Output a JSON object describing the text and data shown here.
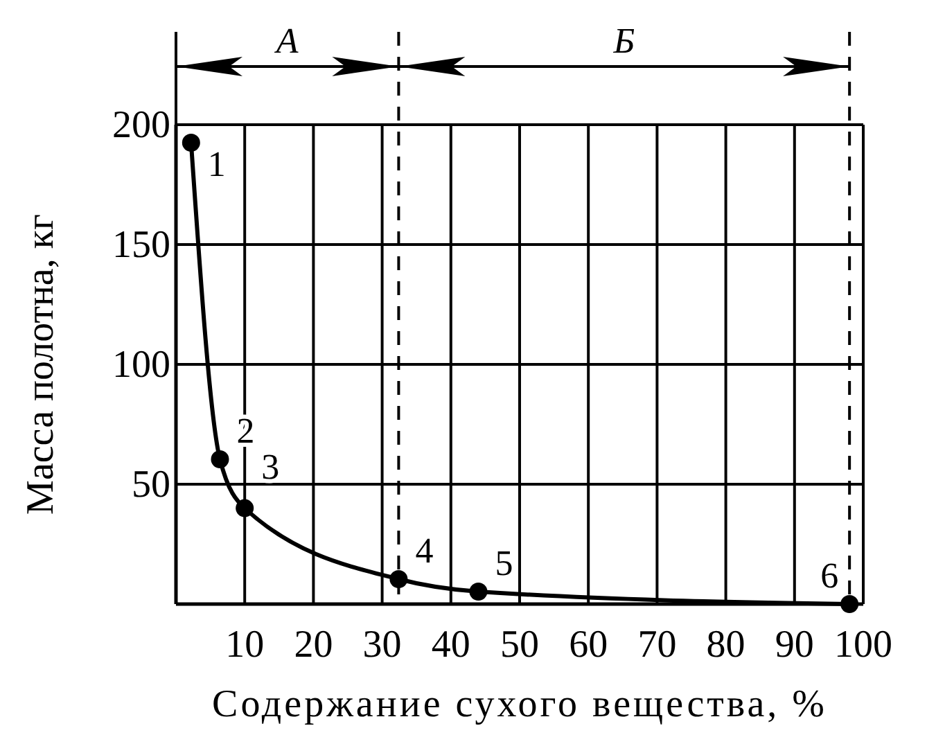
{
  "chart_data": {
    "type": "line",
    "xlabel": "Содержание сухого вещества, %",
    "ylabel": "Масса полотна, кг",
    "x": [
      2.2,
      6.4,
      10,
      32.4,
      44,
      98
    ],
    "series": [
      {
        "color": "#000000",
        "values": [
          192.5,
          60.4,
          40,
          10.4,
          5.2,
          0
        ]
      }
    ],
    "marker": "circle",
    "line_style": "solid",
    "grid": true,
    "xlim": [
      0,
      100
    ],
    "xticks": [
      10,
      20,
      30,
      40,
      50,
      60,
      70,
      80,
      90,
      100
    ],
    "ylim": [
      0,
      200
    ],
    "yticks": [
      50,
      100,
      150,
      200
    ],
    "ref_lines": [
      {
        "axis": "x",
        "value": 32.4,
        "line_style": "dashed"
      },
      {
        "axis": "x",
        "value": 98,
        "line_style": "dashed"
      }
    ],
    "annotations": [
      "А",
      "Б",
      {
        "text": "1",
        "x": 2.2,
        "y": 192.5
      },
      {
        "text": "2",
        "x": 6.4,
        "y": 60.4
      },
      {
        "text": "3",
        "x": 10,
        "y": 40
      },
      {
        "text": "4",
        "x": 32.4,
        "y": 10.4
      },
      {
        "text": "5",
        "x": 44,
        "y": 5.2
      },
      {
        "text": "6",
        "x": 98,
        "y": 0
      }
    ]
  }
}
